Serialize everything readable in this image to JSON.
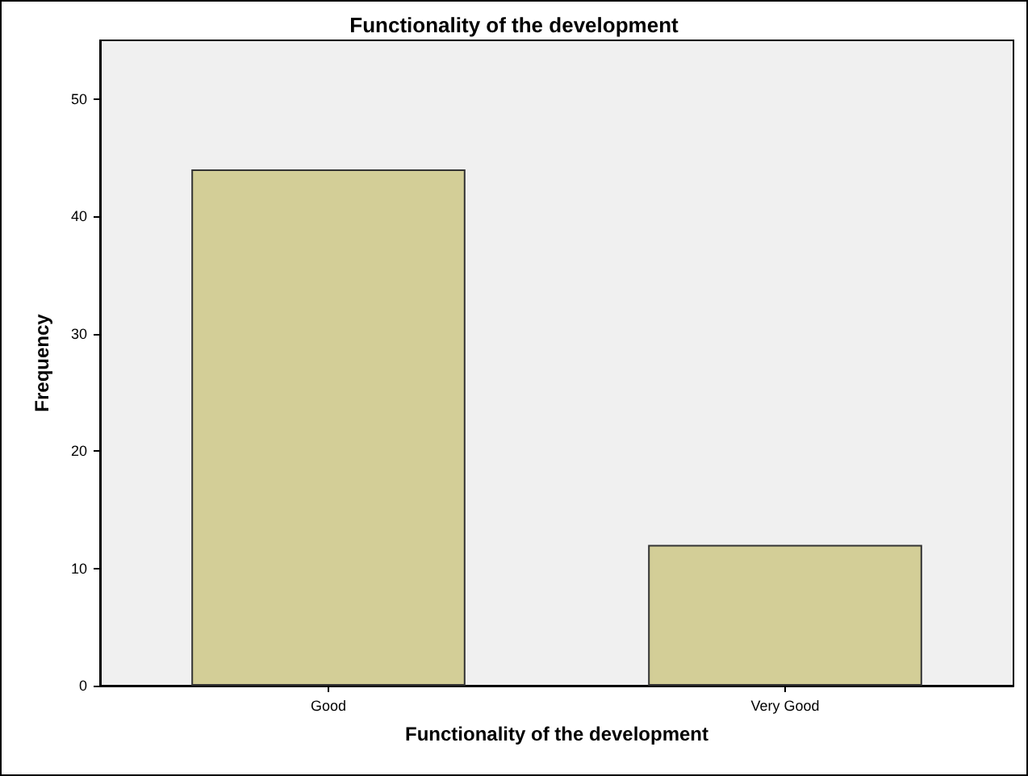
{
  "chart_data": {
    "type": "bar",
    "title": "Functionality of the development",
    "xlabel": "Functionality of the development",
    "ylabel": "Frequency",
    "categories": [
      "Good",
      "Very Good"
    ],
    "values": [
      44,
      12
    ],
    "color": "#d3ce97",
    "ylim": [
      0,
      55
    ],
    "yticks": [
      0,
      10,
      20,
      30,
      40,
      50
    ],
    "grid": false
  }
}
